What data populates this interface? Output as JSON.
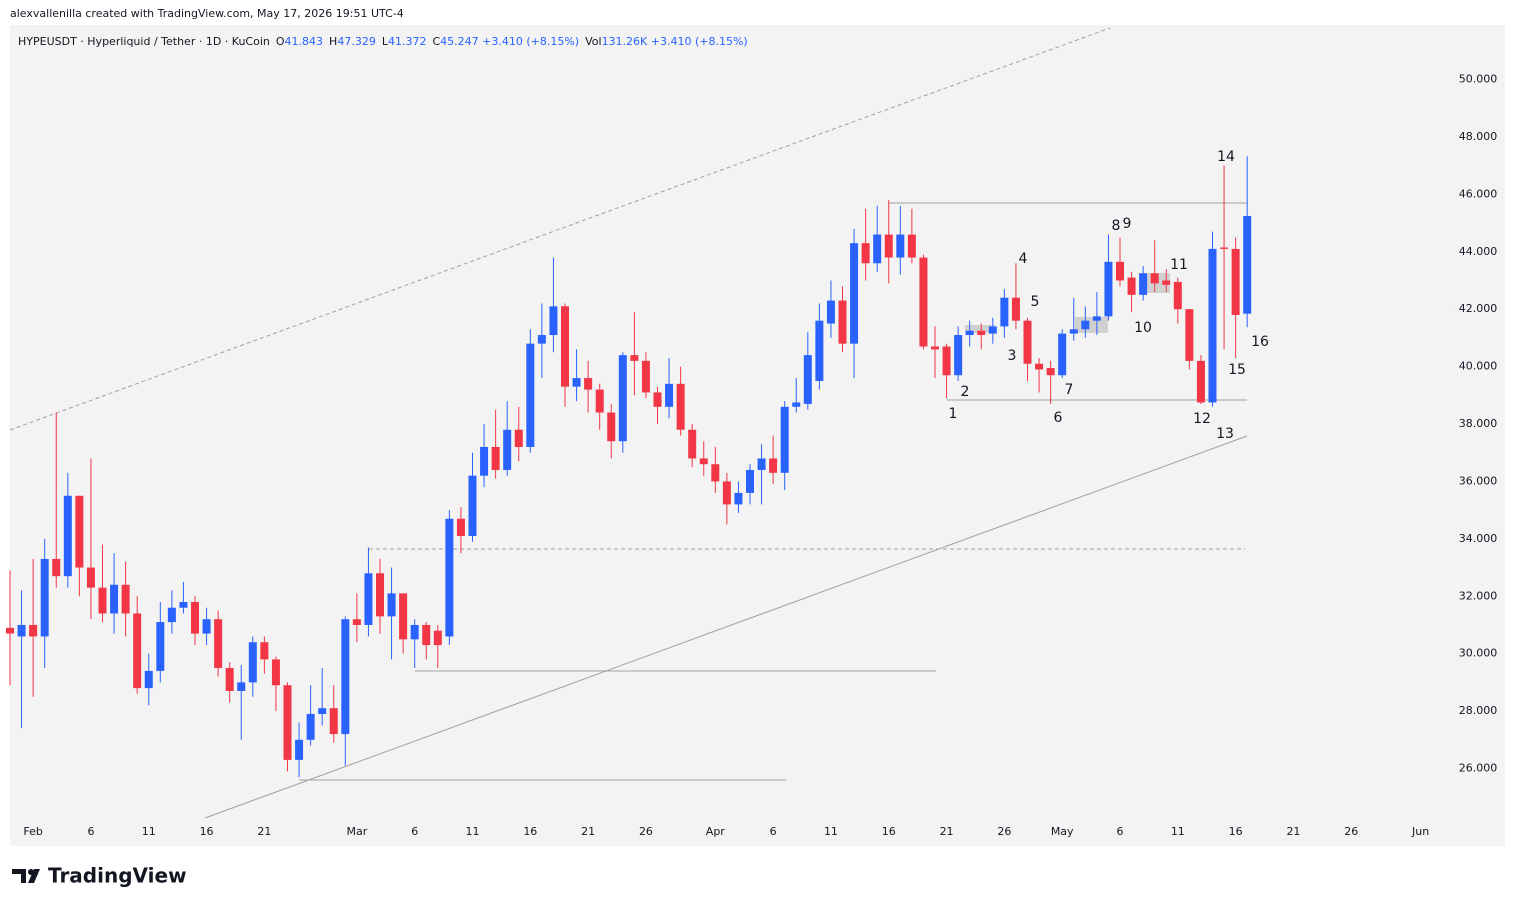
{
  "header": "alexvallenilla created with TradingView.com, May 17, 2026 19:51 UTC-4",
  "footer": "TradingView",
  "legend": {
    "symbol": "HYPEUSDT · Hyperliquid / Tether · 1D · KuCoin",
    "fields": [
      {
        "key": "O",
        "value": "41.843"
      },
      {
        "key": "H",
        "value": "47.329"
      },
      {
        "key": "L",
        "value": "41.372"
      },
      {
        "key": "C",
        "value": "45.247 +3.410 (+8.15%)"
      },
      {
        "key": "Vol",
        "value": "131.26K +3.410 (+8.15%)"
      }
    ]
  },
  "chart_data": {
    "type": "candlestick",
    "up_color": "#2962ff",
    "down_color": "#f23645",
    "categories": [
      "2026-01-30",
      "2026-01-31",
      "2026-02-01",
      "2026-02-02",
      "2026-02-03",
      "2026-02-04",
      "2026-02-05",
      "2026-02-06",
      "2026-02-07",
      "2026-02-08",
      "2026-02-09",
      "2026-02-10",
      "2026-02-11",
      "2026-02-12",
      "2026-02-13",
      "2026-02-14",
      "2026-02-15",
      "2026-02-16",
      "2026-02-17",
      "2026-02-18",
      "2026-02-19",
      "2026-02-20",
      "2026-02-21",
      "2026-02-22",
      "2026-02-23",
      "2026-02-24",
      "2026-02-25",
      "2026-02-26",
      "2026-02-27",
      "2026-02-28",
      "2026-03-01",
      "2026-03-02",
      "2026-03-03",
      "2026-03-04",
      "2026-03-05",
      "2026-03-06",
      "2026-03-07",
      "2026-03-08",
      "2026-03-09",
      "2026-03-10",
      "2026-03-11",
      "2026-03-12",
      "2026-03-13",
      "2026-03-14",
      "2026-03-15",
      "2026-03-16",
      "2026-03-17",
      "2026-03-18",
      "2026-03-19",
      "2026-03-20",
      "2026-03-21",
      "2026-03-22",
      "2026-03-23",
      "2026-03-24",
      "2026-03-25",
      "2026-03-26",
      "2026-03-27",
      "2026-03-28",
      "2026-03-29",
      "2026-03-30",
      "2026-03-31",
      "2026-04-01",
      "2026-04-02",
      "2026-04-03",
      "2026-04-04",
      "2026-04-05",
      "2026-04-06",
      "2026-04-07",
      "2026-04-08",
      "2026-04-09",
      "2026-04-10",
      "2026-04-11",
      "2026-04-12",
      "2026-04-13",
      "2026-04-14",
      "2026-04-15",
      "2026-04-16",
      "2026-04-17",
      "2026-04-18",
      "2026-04-19",
      "2026-04-20",
      "2026-04-21",
      "2026-04-22",
      "2026-04-23",
      "2026-04-24",
      "2026-04-25",
      "2026-04-26",
      "2026-04-27",
      "2026-04-28",
      "2026-04-29",
      "2026-04-30",
      "2026-05-01",
      "2026-05-02",
      "2026-05-03",
      "2026-05-04",
      "2026-05-05",
      "2026-05-06",
      "2026-05-07",
      "2026-05-08",
      "2026-05-09",
      "2026-05-10",
      "2026-05-11",
      "2026-05-12",
      "2026-05-13",
      "2026-05-14",
      "2026-05-15",
      "2026-05-16",
      "2026-05-17"
    ],
    "open": [
      30.9,
      30.6,
      31.0,
      30.6,
      33.3,
      32.7,
      35.5,
      33.0,
      32.3,
      31.4,
      32.4,
      31.4,
      28.8,
      29.4,
      31.1,
      31.6,
      31.8,
      30.7,
      31.2,
      29.5,
      28.7,
      29.0,
      30.4,
      29.8,
      28.9,
      26.3,
      27.0,
      27.9,
      28.1,
      27.2,
      31.2,
      31.0,
      32.8,
      31.3,
      32.1,
      30.5,
      31.0,
      30.8,
      30.6,
      34.7,
      34.1,
      36.2,
      37.2,
      36.4,
      37.8,
      37.2,
      40.8,
      41.1,
      42.1,
      39.3,
      39.6,
      39.2,
      38.4,
      37.4,
      40.4,
      40.2,
      39.1,
      38.6,
      39.4,
      37.8,
      36.8,
      36.6,
      36.0,
      35.2,
      35.6,
      36.4,
      36.8,
      36.3,
      38.6,
      38.7,
      39.5,
      41.5,
      42.3,
      40.8,
      44.3,
      43.6,
      44.6,
      43.8,
      44.6,
      43.8,
      40.7,
      40.7,
      39.7,
      41.1,
      41.25,
      41.15,
      41.4,
      42.4,
      41.6,
      40.1,
      39.95,
      39.7,
      41.15,
      41.3,
      41.6,
      41.75,
      43.65,
      43.1,
      42.5,
      43.25,
      43.0,
      42.95,
      42.0,
      40.2,
      38.75,
      44.15,
      44.1,
      41.843
    ],
    "high": [
      32.9,
      32.2,
      33.3,
      34.0,
      38.4,
      36.3,
      35.5,
      36.8,
      33.8,
      33.5,
      33.2,
      32.0,
      30.0,
      31.8,
      32.2,
      32.5,
      32.0,
      31.6,
      31.5,
      29.7,
      29.6,
      30.6,
      30.6,
      29.9,
      29.0,
      27.6,
      28.9,
      29.5,
      28.9,
      31.3,
      32.1,
      33.7,
      33.3,
      33.0,
      32.1,
      31.2,
      31.1,
      31.0,
      35.0,
      35.1,
      37.0,
      38.0,
      38.5,
      38.8,
      38.6,
      41.3,
      42.2,
      43.8,
      42.2,
      40.6,
      40.2,
      39.4,
      38.7,
      40.5,
      41.9,
      40.5,
      39.3,
      40.3,
      40.0,
      38.0,
      37.4,
      37.2,
      36.3,
      36.0,
      36.6,
      37.3,
      37.6,
      38.8,
      39.6,
      41.2,
      42.2,
      43.0,
      42.8,
      44.8,
      45.5,
      45.6,
      45.8,
      45.6,
      45.5,
      43.9,
      41.4,
      40.8,
      41.4,
      41.6,
      41.5,
      41.7,
      42.7,
      43.6,
      41.7,
      40.3,
      40.2,
      41.3,
      42.4,
      42.1,
      42.6,
      44.6,
      44.5,
      43.3,
      43.5,
      44.4,
      43.4,
      43.1,
      42.0,
      40.4,
      44.7,
      47.0,
      44.5,
      47.329
    ],
    "low": [
      28.9,
      27.4,
      28.5,
      29.5,
      32.3,
      32.3,
      32.0,
      31.2,
      31.1,
      30.7,
      30.6,
      28.6,
      28.2,
      29.0,
      30.7,
      31.4,
      30.3,
      30.3,
      29.2,
      28.3,
      27.0,
      28.5,
      29.3,
      28.0,
      25.9,
      25.7,
      26.8,
      27.5,
      26.9,
      26.1,
      30.4,
      30.6,
      30.7,
      29.8,
      30.0,
      29.5,
      29.8,
      29.5,
      30.3,
      33.5,
      33.9,
      35.8,
      36.1,
      36.2,
      36.7,
      37.0,
      39.6,
      40.5,
      38.6,
      38.8,
      38.4,
      37.8,
      36.8,
      37.0,
      39.0,
      38.9,
      38.0,
      38.2,
      37.6,
      36.5,
      36.2,
      35.6,
      34.5,
      34.9,
      35.2,
      35.2,
      35.9,
      35.7,
      38.4,
      38.5,
      39.2,
      41.0,
      40.5,
      39.6,
      43.0,
      43.3,
      42.9,
      43.2,
      43.6,
      40.6,
      39.6,
      38.9,
      39.5,
      40.7,
      40.6,
      40.8,
      41.0,
      41.3,
      39.5,
      39.1,
      38.7,
      39.6,
      40.9,
      41.0,
      41.1,
      41.6,
      42.8,
      41.9,
      42.3,
      42.6,
      42.6,
      41.5,
      39.9,
      38.7,
      38.6,
      40.6,
      40.3,
      41.372
    ],
    "close": [
      30.7,
      31.0,
      30.6,
      33.3,
      32.7,
      35.5,
      33.0,
      32.3,
      31.4,
      32.4,
      31.4,
      28.8,
      29.4,
      31.1,
      31.6,
      31.8,
      30.7,
      31.2,
      29.5,
      28.7,
      29.0,
      30.4,
      29.8,
      28.9,
      26.3,
      27.0,
      27.9,
      28.1,
      27.2,
      31.2,
      31.0,
      32.8,
      31.3,
      32.1,
      30.5,
      31.0,
      30.3,
      30.3,
      34.7,
      34.1,
      36.2,
      37.2,
      36.4,
      37.8,
      37.2,
      40.8,
      41.1,
      42.1,
      39.3,
      39.6,
      39.2,
      38.4,
      37.4,
      40.4,
      40.2,
      39.1,
      38.6,
      39.4,
      37.8,
      36.8,
      36.6,
      36.0,
      35.2,
      35.6,
      36.4,
      36.8,
      36.3,
      38.6,
      38.75,
      40.4,
      41.6,
      42.3,
      40.8,
      44.3,
      43.6,
      44.6,
      43.8,
      44.6,
      43.8,
      40.7,
      40.6,
      39.7,
      41.1,
      41.25,
      41.1,
      41.4,
      42.4,
      41.6,
      40.1,
      39.9,
      39.7,
      41.15,
      41.3,
      41.6,
      41.75,
      43.65,
      43.0,
      42.5,
      43.25,
      42.9,
      42.85,
      42.0,
      40.2,
      38.75,
      44.1,
      44.1,
      41.8,
      45.247
    ],
    "xlim": [
      "2026-01-30",
      "2026-06-07"
    ],
    "xticks": [
      {
        "value": "2026-02-01",
        "label": "Feb"
      },
      {
        "value": "2026-02-06",
        "label": "6"
      },
      {
        "value": "2026-02-11",
        "label": "11"
      },
      {
        "value": "2026-02-16",
        "label": "16"
      },
      {
        "value": "2026-02-21",
        "label": "21"
      },
      {
        "value": "2026-03-01",
        "label": "Mar"
      },
      {
        "value": "2026-03-06",
        "label": "6"
      },
      {
        "value": "2026-03-11",
        "label": "11"
      },
      {
        "value": "2026-03-16",
        "label": "16"
      },
      {
        "value": "2026-03-21",
        "label": "21"
      },
      {
        "value": "2026-03-26",
        "label": "26"
      },
      {
        "value": "2026-04-01",
        "label": "Apr"
      },
      {
        "value": "2026-04-06",
        "label": "6"
      },
      {
        "value": "2026-04-11",
        "label": "11"
      },
      {
        "value": "2026-04-16",
        "label": "16"
      },
      {
        "value": "2026-04-21",
        "label": "21"
      },
      {
        "value": "2026-04-26",
        "label": "26"
      },
      {
        "value": "2026-05-01",
        "label": "May"
      },
      {
        "value": "2026-05-06",
        "label": "6"
      },
      {
        "value": "2026-05-11",
        "label": "11"
      },
      {
        "value": "2026-05-16",
        "label": "16"
      },
      {
        "value": "2026-05-21",
        "label": "21"
      },
      {
        "value": "2026-05-26",
        "label": "26"
      },
      {
        "value": "2026-06-01",
        "label": "Jun"
      }
    ],
    "ylim": [
      23.3,
      51.9
    ],
    "yticks": [
      {
        "value": 26,
        "label": "26.000"
      },
      {
        "value": 28,
        "label": "28.000"
      },
      {
        "value": 30,
        "label": "30.000"
      },
      {
        "value": 32,
        "label": "32.000"
      },
      {
        "value": 34,
        "label": "34.000"
      },
      {
        "value": 36,
        "label": "36.000"
      },
      {
        "value": 38,
        "label": "38.000"
      },
      {
        "value": 40,
        "label": "40.000"
      },
      {
        "value": 42,
        "label": "42.000"
      },
      {
        "value": 44,
        "label": "44.000"
      },
      {
        "value": 46,
        "label": "46.000"
      },
      {
        "value": 48,
        "label": "48.000"
      },
      {
        "value": 50,
        "label": "50.000"
      }
    ],
    "annotations": [
      "1",
      "2",
      "3",
      "4",
      "5",
      "6",
      "7",
      "8",
      "9",
      "10",
      "11",
      "12",
      "13",
      "14",
      "15",
      "16"
    ]
  }
}
